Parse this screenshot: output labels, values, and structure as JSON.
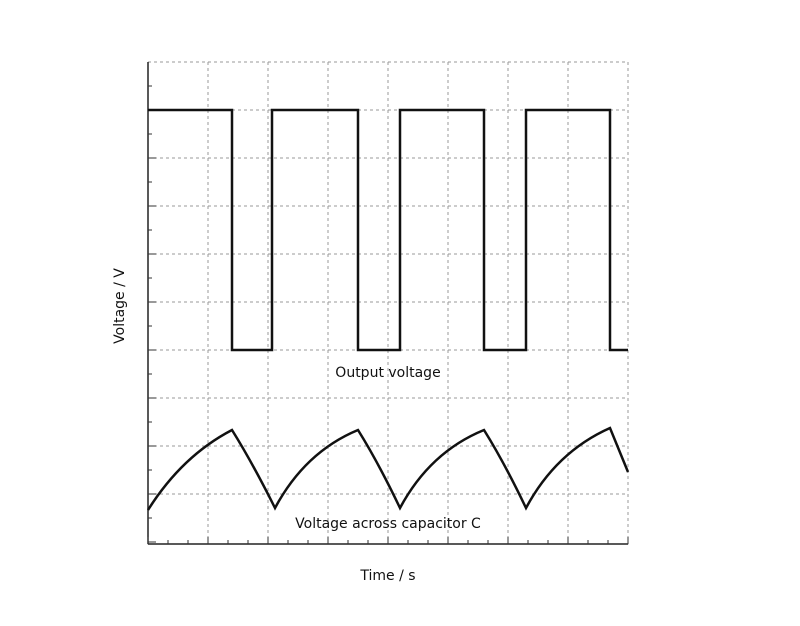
{
  "axes": {
    "y_label": "Voltage / V",
    "x_label": "Time / s"
  },
  "curves": {
    "square": {
      "label": "Output voltage"
    },
    "capacitor": {
      "label": "Voltage across capacitor C"
    }
  }
}
